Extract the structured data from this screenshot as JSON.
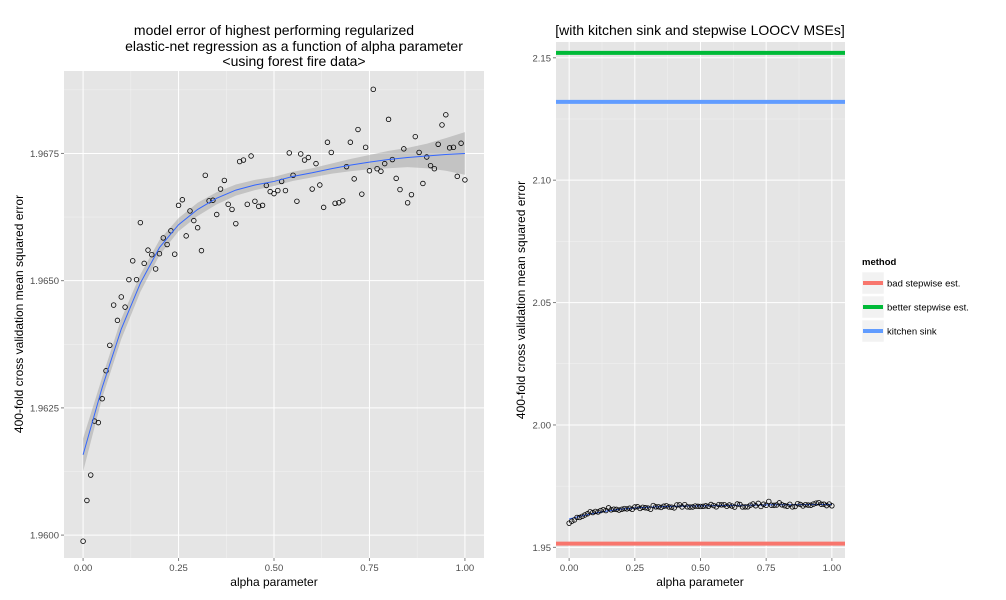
{
  "chart_data": [
    {
      "type": "scatter",
      "title_lines": [
        "model error of highest performing regularized",
        "elastic-net regression as a function of alpha parameter",
        "<using forest fire data>"
      ],
      "xlabel": "alpha parameter",
      "ylabel": "400-fold cross validation mean squared error",
      "xlim": [
        -0.05,
        1.05
      ],
      "ylim": [
        1.95955,
        1.96912
      ],
      "x_ticks": [
        {
          "v": 0,
          "label": "0.00"
        },
        {
          "v": 0.25,
          "label": "0.25"
        },
        {
          "v": 0.5,
          "label": "0.50"
        },
        {
          "v": 0.75,
          "label": "0.75"
        },
        {
          "v": 1,
          "label": "1.00"
        }
      ],
      "y_ticks": [
        {
          "v": 1.96,
          "label": "1.9600"
        },
        {
          "v": 1.9625,
          "label": "1.9625"
        },
        {
          "v": 1.965,
          "label": "1.9650"
        },
        {
          "v": 1.9675,
          "label": "1.9675"
        }
      ],
      "points": [
        [
          0.0,
          1.95988
        ],
        [
          0.01,
          1.96068
        ],
        [
          0.02,
          1.96118
        ],
        [
          0.03,
          1.96224
        ],
        [
          0.04,
          1.96221
        ],
        [
          0.05,
          1.96268
        ],
        [
          0.06,
          1.96323
        ],
        [
          0.07,
          1.96373
        ],
        [
          0.08,
          1.96452
        ],
        [
          0.09,
          1.96422
        ],
        [
          0.1,
          1.96468
        ],
        [
          0.11,
          1.96448
        ],
        [
          0.12,
          1.96502
        ],
        [
          0.13,
          1.96539
        ],
        [
          0.14,
          1.96502
        ],
        [
          0.15,
          1.96614
        ],
        [
          0.16,
          1.96534
        ],
        [
          0.17,
          1.9656
        ],
        [
          0.18,
          1.96551
        ],
        [
          0.19,
          1.96523
        ],
        [
          0.2,
          1.96553
        ],
        [
          0.21,
          1.96584
        ],
        [
          0.22,
          1.96571
        ],
        [
          0.23,
          1.96598
        ],
        [
          0.24,
          1.96552
        ],
        [
          0.25,
          1.96648
        ],
        [
          0.26,
          1.96659
        ],
        [
          0.27,
          1.96588
        ],
        [
          0.28,
          1.96637
        ],
        [
          0.29,
          1.96618
        ],
        [
          0.3,
          1.96604
        ],
        [
          0.31,
          1.96559
        ],
        [
          0.32,
          1.96707
        ],
        [
          0.33,
          1.96657
        ],
        [
          0.34,
          1.96658
        ],
        [
          0.35,
          1.9663
        ],
        [
          0.36,
          1.9668
        ],
        [
          0.37,
          1.96697
        ],
        [
          0.38,
          1.9665
        ],
        [
          0.39,
          1.9664
        ],
        [
          0.4,
          1.96612
        ],
        [
          0.41,
          1.96734
        ],
        [
          0.42,
          1.96737
        ],
        [
          0.43,
          1.9665
        ],
        [
          0.44,
          1.96745
        ],
        [
          0.45,
          1.96656
        ],
        [
          0.46,
          1.96646
        ],
        [
          0.47,
          1.96648
        ],
        [
          0.48,
          1.96687
        ],
        [
          0.49,
          1.96675
        ],
        [
          0.5,
          1.96671
        ],
        [
          0.51,
          1.96677
        ],
        [
          0.52,
          1.96695
        ],
        [
          0.53,
          1.96677
        ],
        [
          0.54,
          1.96751
        ],
        [
          0.55,
          1.96707
        ],
        [
          0.56,
          1.96656
        ],
        [
          0.57,
          1.96749
        ],
        [
          0.58,
          1.96737
        ],
        [
          0.59,
          1.96742
        ],
        [
          0.6,
          1.9668
        ],
        [
          0.61,
          1.9673
        ],
        [
          0.62,
          1.96688
        ],
        [
          0.63,
          1.96644
        ],
        [
          0.64,
          1.96772
        ],
        [
          0.65,
          1.96752
        ],
        [
          0.66,
          1.96652
        ],
        [
          0.67,
          1.96653
        ],
        [
          0.68,
          1.96657
        ],
        [
          0.69,
          1.96724
        ],
        [
          0.7,
          1.96772
        ],
        [
          0.71,
          1.967
        ],
        [
          0.72,
          1.96797
        ],
        [
          0.73,
          1.9667
        ],
        [
          0.74,
          1.96762
        ],
        [
          0.75,
          1.96716
        ],
        [
          0.76,
          1.96876
        ],
        [
          0.77,
          1.9672
        ],
        [
          0.78,
          1.96715
        ],
        [
          0.79,
          1.9673
        ],
        [
          0.8,
          1.96817
        ],
        [
          0.81,
          1.96738
        ],
        [
          0.82,
          1.96701
        ],
        [
          0.83,
          1.96679
        ],
        [
          0.84,
          1.96759
        ],
        [
          0.85,
          1.96653
        ],
        [
          0.86,
          1.96669
        ],
        [
          0.87,
          1.96783
        ],
        [
          0.88,
          1.96752
        ],
        [
          0.89,
          1.96691
        ],
        [
          0.9,
          1.96743
        ],
        [
          0.91,
          1.96726
        ],
        [
          0.92,
          1.9672
        ],
        [
          0.93,
          1.96768
        ],
        [
          0.94,
          1.96806
        ],
        [
          0.95,
          1.96826
        ],
        [
          0.96,
          1.96761
        ],
        [
          0.97,
          1.96762
        ],
        [
          0.98,
          1.96705
        ],
        [
          0.99,
          1.9677
        ],
        [
          1.0,
          1.96698
        ]
      ],
      "smooth": {
        "color": "#3366ff",
        "band_color": "#999999",
        "x": [
          0.0,
          0.05,
          0.1,
          0.15,
          0.2,
          0.25,
          0.3,
          0.35,
          0.4,
          0.45,
          0.5,
          0.55,
          0.6,
          0.65,
          0.7,
          0.75,
          0.8,
          0.85,
          0.9,
          0.95,
          1.0
        ],
        "y": [
          1.96158,
          1.9629,
          1.96405,
          1.96495,
          1.96565,
          1.9661,
          1.9664,
          1.96662,
          1.96678,
          1.96688,
          1.96695,
          1.96705,
          1.96712,
          1.9672,
          1.96727,
          1.96733,
          1.96738,
          1.96742,
          1.96745,
          1.96748,
          1.9675
        ],
        "lo": [
          1.96125,
          1.9627,
          1.96385,
          1.96478,
          1.9655,
          1.96597,
          1.96627,
          1.9665,
          1.96667,
          1.96678,
          1.96686,
          1.96696,
          1.96703,
          1.9671,
          1.96715,
          1.96719,
          1.96721,
          1.96723,
          1.96721,
          1.96716,
          1.96708
        ],
        "hi": [
          1.9619,
          1.9631,
          1.96425,
          1.96512,
          1.9658,
          1.96623,
          1.96653,
          1.96674,
          1.96689,
          1.96698,
          1.96704,
          1.96714,
          1.96721,
          1.9673,
          1.96739,
          1.96747,
          1.96755,
          1.96761,
          1.96769,
          1.9678,
          1.96792
        ]
      }
    },
    {
      "type": "line",
      "title": "[with kitchen sink and stepwise LOOCV MSEs]",
      "xlabel": "alpha parameter",
      "ylabel": "400-fold cross validation mean squared error",
      "xlim": [
        -0.05,
        1.05
      ],
      "ylim": [
        1.94565,
        2.15645
      ],
      "x_ticks": [
        {
          "v": 0,
          "label": "0.00"
        },
        {
          "v": 0.25,
          "label": "0.25"
        },
        {
          "v": 0.5,
          "label": "0.50"
        },
        {
          "v": 0.75,
          "label": "0.75"
        },
        {
          "v": 1,
          "label": "1.00"
        }
      ],
      "y_ticks": [
        {
          "v": 1.95,
          "label": "1.95"
        },
        {
          "v": 2.0,
          "label": "2.00"
        },
        {
          "v": 2.05,
          "label": "2.05"
        },
        {
          "v": 2.1,
          "label": "2.10"
        },
        {
          "v": 2.15,
          "label": "2.15"
        }
      ],
      "hlines": [
        {
          "name": "bad stepwise est.",
          "y": 1.9515,
          "color": "#f8766d"
        },
        {
          "name": "better stepwise est.",
          "y": 2.152,
          "color": "#00ba38"
        },
        {
          "name": "kitchen sink",
          "y": 2.132,
          "color": "#619cff"
        }
      ],
      "legend": {
        "title": "method",
        "placement": "right",
        "entries": [
          "bad stepwise est.",
          "better stepwise est.",
          "kitchen sink"
        ]
      }
    }
  ]
}
